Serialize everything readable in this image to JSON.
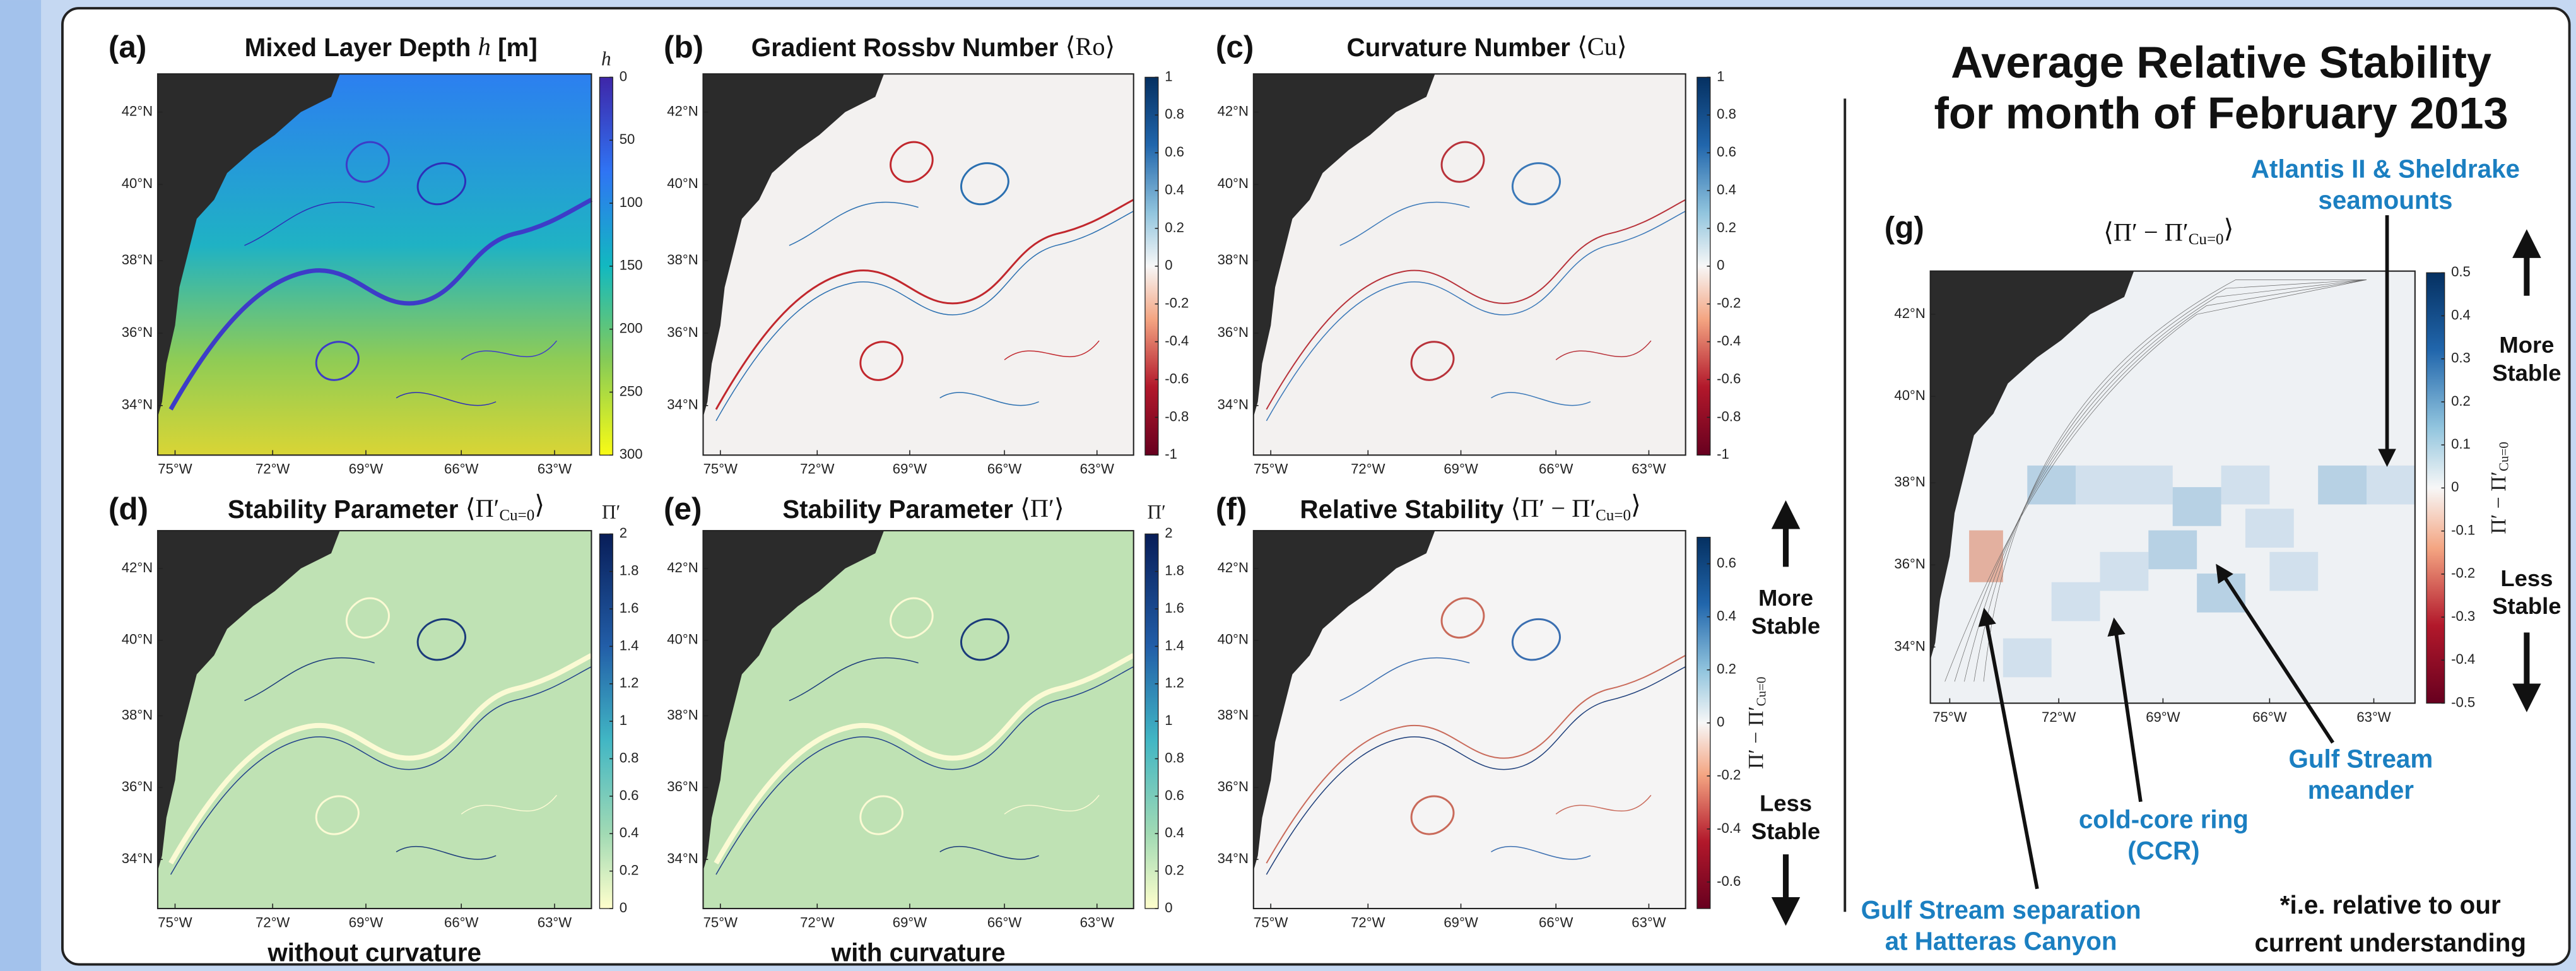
{
  "map_axes": {
    "lat_labels": [
      "42°N",
      "40°N",
      "38°N",
      "36°N",
      "34°N"
    ],
    "lon_labels": [
      "75°W",
      "72°W",
      "69°W",
      "66°W",
      "63°W"
    ]
  },
  "panels": [
    {
      "label": "(a)",
      "title": [
        {
          "text": "Mixed Layer Depth "
        },
        {
          "text": "h",
          "math": true,
          "italic": true
        },
        {
          "text": " [m]"
        }
      ],
      "colorbar": {
        "label": [
          {
            "text": "h",
            "math": true,
            "italic": true
          }
        ],
        "range": [
          0,
          300
        ],
        "reversed": true,
        "colormap": "parula",
        "ticks": [
          0,
          50,
          100,
          150,
          200,
          250,
          300
        ]
      }
    },
    {
      "label": "(b)",
      "title": [
        {
          "text": "Gradient Rossbv Number "
        },
        {
          "text": "⟨Ro⟩",
          "math": true
        }
      ],
      "colorbar": {
        "range": [
          -1,
          1
        ],
        "colormap": "rdbu",
        "ticks": [
          1,
          0.8,
          0.6,
          0.4,
          0.2,
          0,
          -0.2,
          -0.4,
          -0.6,
          -0.8,
          -1
        ]
      }
    },
    {
      "label": "(c)",
      "title": [
        {
          "text": "Curvature Number "
        },
        {
          "text": "⟨Cu⟩",
          "math": true
        }
      ],
      "colorbar": {
        "range": [
          -1,
          1
        ],
        "colormap": "rdbu",
        "ticks": [
          1,
          0.8,
          0.6,
          0.4,
          0.2,
          0,
          -0.2,
          -0.4,
          -0.6,
          -0.8,
          -1
        ]
      }
    },
    {
      "label": "(d)",
      "title": [
        {
          "text": "Stability Parameter "
        },
        {
          "text": "⟨Π′",
          "math": true
        },
        {
          "text": "Cu=0",
          "math": true,
          "sub": true
        },
        {
          "text": "⟩",
          "math": true
        }
      ],
      "caption": "without curvature",
      "colorbar": {
        "label": [
          {
            "text": "Π′",
            "math": true
          }
        ],
        "range": [
          0,
          2
        ],
        "colormap": "ylgnbu",
        "ticks": [
          2,
          1.8,
          1.6,
          1.4,
          1.2,
          1,
          0.8,
          0.6,
          0.4,
          0.2,
          0
        ]
      }
    },
    {
      "label": "(e)",
      "title": [
        {
          "text": "Stability Parameter "
        },
        {
          "text": "⟨Π′⟩",
          "math": true
        }
      ],
      "caption": "with curvature",
      "colorbar": {
        "label": [
          {
            "text": "Π′",
            "math": true
          }
        ],
        "range": [
          0,
          2
        ],
        "colormap": "ylgnbu",
        "ticks": [
          2,
          1.8,
          1.6,
          1.4,
          1.2,
          1,
          0.8,
          0.6,
          0.4,
          0.2,
          0
        ]
      }
    },
    {
      "label": "(f)",
      "title": [
        {
          "text": "Relative Stability "
        },
        {
          "text": "⟨Π′ − Π′",
          "math": true
        },
        {
          "text": "Cu=0",
          "math": true,
          "sub": true
        },
        {
          "text": "⟩",
          "math": true
        }
      ],
      "colorbar": {
        "label": [
          {
            "text": "Π′ − Π′",
            "math": true
          },
          {
            "text": "Cu=0",
            "math": true,
            "sub": true
          }
        ],
        "range": [
          -0.7,
          0.7
        ],
        "colormap": "rdbu",
        "ticks": [
          0.6,
          0.4,
          0.2,
          0,
          -0.2,
          -0.4,
          -0.6
        ]
      }
    },
    {
      "label": "(g)",
      "title": [
        {
          "text": "⟨Π′ − Π′",
          "math": true
        },
        {
          "text": "Cu=0",
          "math": true,
          "sub": true
        },
        {
          "text": "⟩",
          "math": true
        }
      ],
      "colorbar": {
        "label": [
          {
            "text": "Π′ − Π′",
            "math": true
          },
          {
            "text": "Cu=0",
            "math": true,
            "sub": true
          }
        ],
        "range": [
          -0.5,
          0.5
        ],
        "colormap": "rdbu",
        "ticks": [
          0.5,
          0.4,
          0.3,
          0.2,
          0.1,
          0,
          -0.1,
          -0.2,
          -0.3,
          -0.4,
          -0.5
        ]
      }
    }
  ],
  "stability": {
    "more": [
      "More",
      "Stable"
    ],
    "less": [
      "Less",
      "Stable"
    ]
  },
  "summary": {
    "title": [
      "Average Relative Stability",
      "for month of February 2013"
    ],
    "annotations": [
      {
        "lines": [
          "Atlantis II & Sheldrake",
          "seamounts"
        ]
      },
      {
        "lines": [
          "Gulf Stream",
          "meander"
        ]
      },
      {
        "lines": [
          "cold-core ring",
          "(CCR)"
        ]
      },
      {
        "lines": [
          "Gulf Stream separation",
          "at Hatteras Canyon"
        ]
      }
    ],
    "footnote": [
      "*i.e. relative to our",
      "current understanding"
    ]
  }
}
